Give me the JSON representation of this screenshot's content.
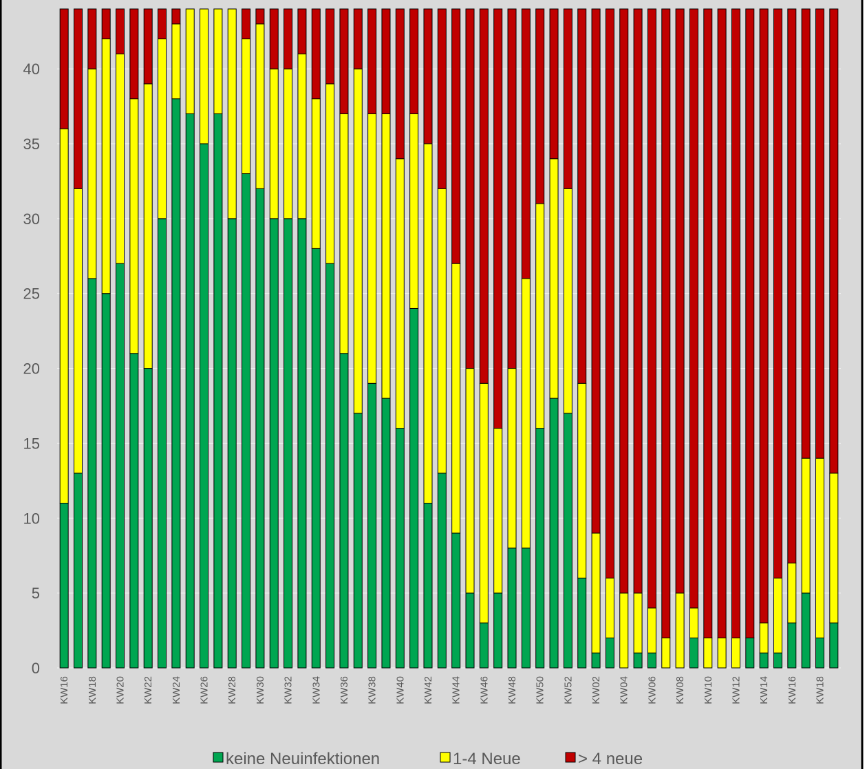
{
  "chart_data": {
    "type": "stacked_bar",
    "categories": [
      "KW16",
      null,
      "KW18",
      null,
      "KW20",
      null,
      "KW22",
      null,
      "KW24",
      null,
      "KW26",
      null,
      "KW28",
      null,
      "KW30",
      null,
      "KW32",
      null,
      "KW34",
      null,
      "KW36",
      null,
      "KW38",
      null,
      "KW40",
      null,
      "KW42",
      null,
      "KW44",
      null,
      "KW46",
      null,
      "KW48",
      null,
      "KW50",
      null,
      "KW52",
      null,
      "KW02",
      null,
      "KW04",
      null,
      "KW06",
      null,
      "KW08",
      null,
      "KW10",
      null,
      "KW12",
      null,
      "KW14",
      null,
      "KW16",
      null,
      "KW18",
      null
    ],
    "series": [
      {
        "name": "keine Neuinfektionen",
        "color": "#00a651",
        "values": [
          11,
          13,
          26,
          25,
          27,
          21,
          20,
          30,
          38,
          37,
          35,
          37,
          30,
          33,
          32,
          30,
          30,
          30,
          28,
          27,
          21,
          17,
          19,
          18,
          16,
          24,
          11,
          13,
          9,
          5,
          3,
          5,
          8,
          8,
          16,
          18,
          17,
          6,
          1,
          2,
          0,
          1,
          1,
          0,
          0,
          2,
          0,
          0,
          0,
          2,
          1,
          1,
          3,
          5,
          2,
          3
        ]
      },
      {
        "name": "1-4 Neue",
        "color": "#ffff00",
        "values": [
          25,
          19,
          14,
          17,
          14,
          17,
          19,
          12,
          5,
          7,
          9,
          7,
          14,
          9,
          11,
          10,
          10,
          11,
          10,
          12,
          16,
          23,
          18,
          19,
          18,
          13,
          24,
          19,
          18,
          15,
          16,
          11,
          12,
          18,
          15,
          16,
          15,
          13,
          8,
          4,
          5,
          4,
          3,
          2,
          5,
          2,
          2,
          2,
          2,
          0,
          2,
          5,
          4,
          9,
          12,
          10
        ]
      },
      {
        "name": "> 4 neue",
        "color": "#c00000",
        "values": [
          8,
          12,
          4,
          2,
          3,
          6,
          5,
          2,
          1,
          0,
          0,
          0,
          0,
          2,
          1,
          4,
          4,
          3,
          6,
          5,
          7,
          4,
          7,
          7,
          10,
          7,
          9,
          12,
          17,
          24,
          25,
          28,
          24,
          18,
          13,
          10,
          12,
          25,
          35,
          38,
          39,
          39,
          40,
          42,
          39,
          40,
          42,
          42,
          42,
          42,
          41,
          38,
          37,
          30,
          30,
          31
        ]
      }
    ],
    "ylim": [
      0,
      44
    ],
    "yticks": [
      0,
      5,
      10,
      15,
      20,
      25,
      30,
      35,
      40
    ],
    "grid": true,
    "legend": "bottom"
  }
}
